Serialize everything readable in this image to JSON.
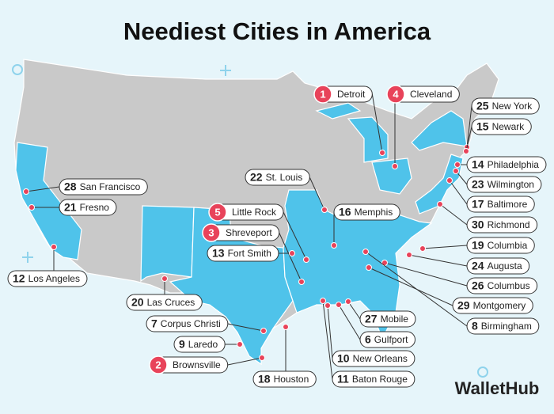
{
  "title": "Neediest Cities in America",
  "brand": "WalletHub",
  "cities": [
    {
      "rank": 1,
      "name": "Detroit"
    },
    {
      "rank": 4,
      "name": "Cleveland"
    },
    {
      "rank": 25,
      "name": "New York"
    },
    {
      "rank": 15,
      "name": "Newark"
    },
    {
      "rank": 14,
      "name": "Philadelphia"
    },
    {
      "rank": 23,
      "name": "Wilmington"
    },
    {
      "rank": 17,
      "name": "Baltimore"
    },
    {
      "rank": 30,
      "name": "Richmond"
    },
    {
      "rank": 19,
      "name": "Columbia"
    },
    {
      "rank": 24,
      "name": "Augusta"
    },
    {
      "rank": 26,
      "name": "Columbus"
    },
    {
      "rank": 29,
      "name": "Montgomery"
    },
    {
      "rank": 8,
      "name": "Birmingham"
    },
    {
      "rank": 27,
      "name": "Mobile"
    },
    {
      "rank": 6,
      "name": "Gulfport"
    },
    {
      "rank": 10,
      "name": "New Orleans"
    },
    {
      "rank": 11,
      "name": "Baton Rouge"
    },
    {
      "rank": 18,
      "name": "Houston"
    },
    {
      "rank": 2,
      "name": "Brownsville"
    },
    {
      "rank": 9,
      "name": "Laredo"
    },
    {
      "rank": 7,
      "name": "Corpus Christi"
    },
    {
      "rank": 20,
      "name": "Las Cruces"
    },
    {
      "rank": 12,
      "name": "Los Angeles"
    },
    {
      "rank": 21,
      "name": "Fresno"
    },
    {
      "rank": 28,
      "name": "San Francisco"
    },
    {
      "rank": 22,
      "name": "St. Louis"
    },
    {
      "rank": 16,
      "name": "Memphis"
    },
    {
      "rank": 5,
      "name": "Little Rock"
    },
    {
      "rank": 3,
      "name": "Shreveport"
    },
    {
      "rank": 13,
      "name": "Fort Smith"
    }
  ]
}
